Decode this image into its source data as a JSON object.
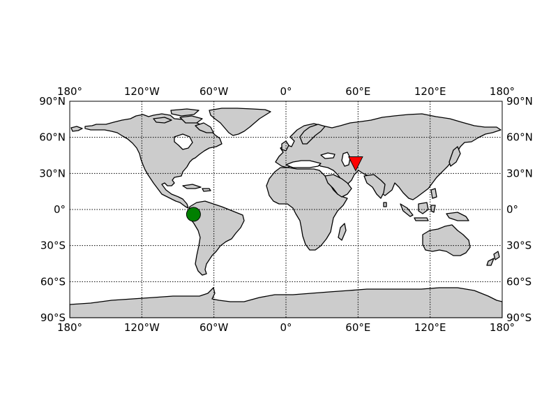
{
  "map": {
    "projection": "cylindrical",
    "land_color": "#cccccc",
    "ocean_color": "#ffffff",
    "coastline_color": "#000000",
    "grid": true,
    "grid_style": "dotted",
    "lon_range": [
      -180,
      180
    ],
    "lat_range": [
      -90,
      90
    ]
  },
  "lon_ticks": [
    {
      "lon": -180,
      "label": "180°"
    },
    {
      "lon": -120,
      "label": "120°W"
    },
    {
      "lon": -60,
      "label": "60°W"
    },
    {
      "lon": 0,
      "label": "0°"
    },
    {
      "lon": 60,
      "label": "60°E"
    },
    {
      "lon": 120,
      "label": "120°E"
    },
    {
      "lon": 180,
      "label": "180°"
    }
  ],
  "lat_ticks": [
    {
      "lat": 90,
      "label": "90°N"
    },
    {
      "lat": 60,
      "label": "60°N"
    },
    {
      "lat": 30,
      "label": "30°N"
    },
    {
      "lat": 0,
      "label": "0°"
    },
    {
      "lat": -30,
      "label": "30°S"
    },
    {
      "lat": -60,
      "label": "60°S"
    },
    {
      "lat": -90,
      "label": "90°S"
    }
  ],
  "markers": [
    {
      "name": "station",
      "shape": "circle",
      "color": "#008000",
      "lon": -77,
      "lat": -4
    },
    {
      "name": "event",
      "shape": "inverted-triangle",
      "color": "#ff0000",
      "lon": 58,
      "lat": 38
    }
  ]
}
